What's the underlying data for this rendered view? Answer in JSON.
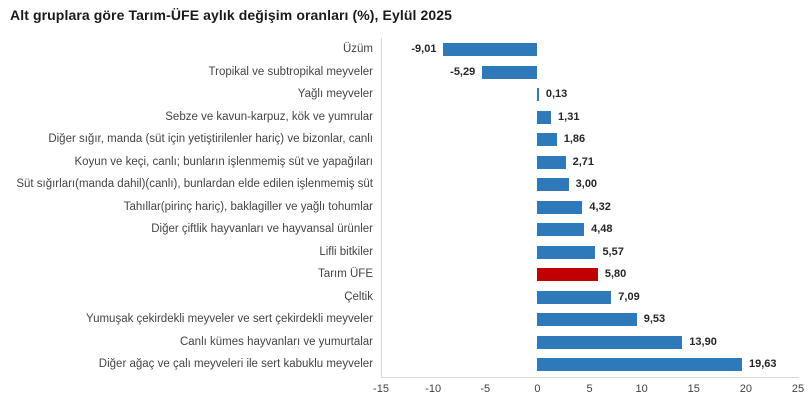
{
  "page": {
    "background": "#ffffff"
  },
  "chart_data": {
    "type": "bar",
    "orientation": "horizontal",
    "title": "Alt gruplara göre Tarım-ÜFE aylık değişim oranları (%), Eylül 2025",
    "categories": [
      "Üzüm",
      "Tropikal ve subtropikal meyveler",
      "Yağlı meyveler",
      "Sebze ve kavun-karpuz, kök ve yumrular",
      "Diğer sığır, manda (süt için yetiştirilenler hariç) ve bizonlar, canlı",
      "Koyun ve keçi, canlı; bunların işlenmemiş süt ve yapağıları",
      "Süt sığırları(manda dahil)(canlı), bunlardan elde edilen işlenmemiş süt",
      "Tahıllar(pirinç hariç), baklagiller ve yağlı tohumlar",
      "Diğer çiftlik hayvanları ve hayvansal ürünler",
      "Lifli bitkiler",
      "Tarım ÜFE",
      "Çeltik",
      "Yumuşak çekirdekli meyveler ve sert çekirdekli meyveler",
      "Canlı kümes hayvanları ve yumurtalar",
      "Diğer ağaç ve çalı meyveleri ile sert kabuklu meyveler"
    ],
    "values": [
      -9.01,
      -5.29,
      0.13,
      1.31,
      1.86,
      2.71,
      3.0,
      4.32,
      4.48,
      5.57,
      5.8,
      7.09,
      9.53,
      13.9,
      19.63
    ],
    "value_labels": [
      "-9,01",
      "-5,29",
      "0,13",
      "1,31",
      "1,86",
      "2,71",
      "3,00",
      "4,32",
      "4,48",
      "5,57",
      "5,80",
      "7,09",
      "9,53",
      "13,90",
      "19,63"
    ],
    "highlight_index": 10,
    "bar_color": "#2e79b9",
    "highlight_color": "#c00000",
    "xlabel": "",
    "ylabel": "",
    "xlim": [
      -15,
      25
    ],
    "x_ticks": [
      -15,
      -10,
      -5,
      0,
      5,
      10,
      15,
      20,
      25
    ],
    "x_tick_labels": [
      "-15",
      "-10",
      "-5",
      "0",
      "5",
      "10",
      "15",
      "20",
      "25"
    ],
    "grid": false,
    "legend": "none"
  }
}
